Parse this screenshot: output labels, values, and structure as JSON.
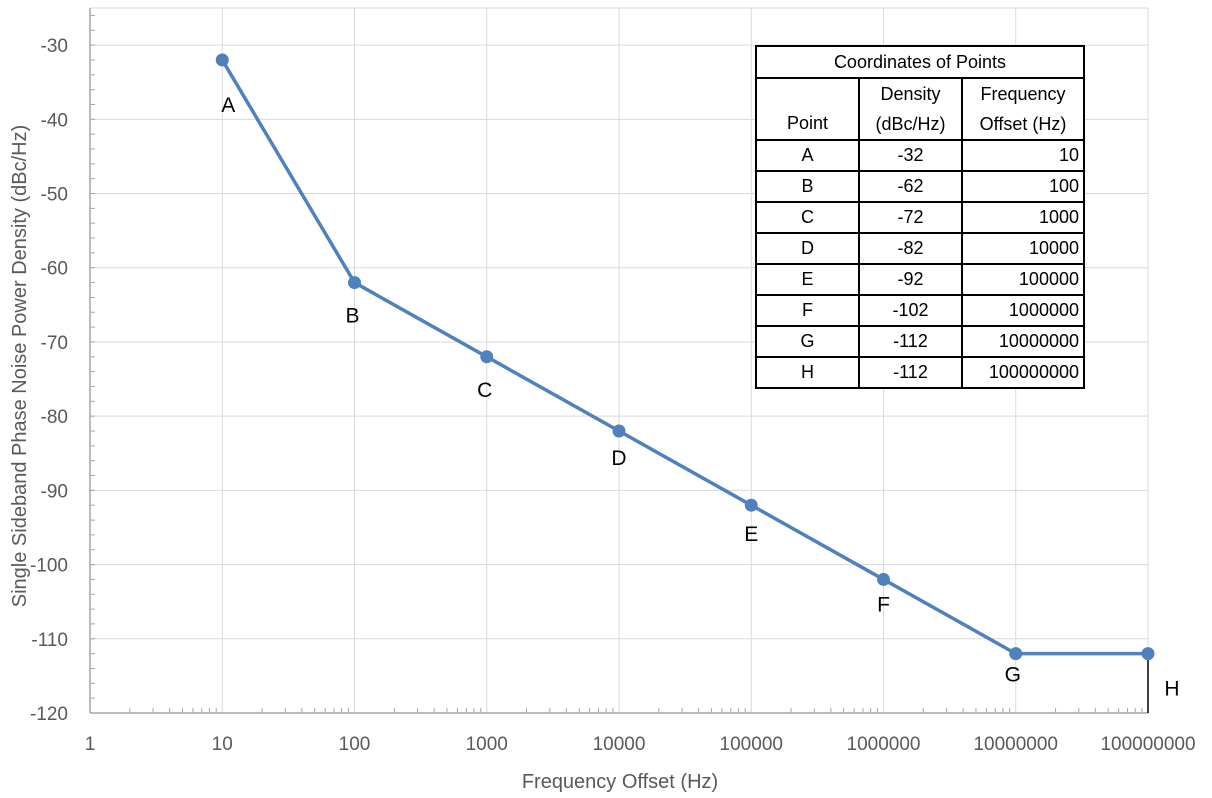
{
  "chart_data": {
    "type": "line",
    "x_scale": "log",
    "xlabel": "Frequency Offset (Hz)",
    "ylabel": "Single Sideband Phase Noise  Power Density (dBc/Hz)",
    "xlim": [
      1,
      100000000
    ],
    "ylim": [
      -120,
      -25
    ],
    "x_ticks": [
      "1",
      "10",
      "100",
      "1000",
      "10000",
      "100000",
      "1000000",
      "10000000",
      "100000000"
    ],
    "y_ticks": [
      "-30",
      "-40",
      "-50",
      "-60",
      "-70",
      "-80",
      "-90",
      "-100",
      "-110",
      "-120"
    ],
    "grid": true,
    "color": "#4f81bd",
    "points": [
      {
        "label": "A",
        "x": 10,
        "y": -32
      },
      {
        "label": "B",
        "x": 100,
        "y": -62
      },
      {
        "label": "C",
        "x": 1000,
        "y": -72
      },
      {
        "label": "D",
        "x": 10000,
        "y": -82
      },
      {
        "label": "E",
        "x": 100000,
        "y": -92
      },
      {
        "label": "F",
        "x": 1000000,
        "y": -102
      },
      {
        "label": "G",
        "x": 10000000,
        "y": -112
      },
      {
        "label": "H",
        "x": 100000000,
        "y": -112
      }
    ]
  },
  "table": {
    "title": "Coordinates of Points",
    "headers": {
      "point": "Point",
      "density_line1": "Density",
      "density_line2": "(dBc/Hz)",
      "freq_line1": "Frequency",
      "freq_line2": "Offset (Hz)"
    },
    "rows": [
      {
        "point": "A",
        "density": "-32",
        "freq": "10"
      },
      {
        "point": "B",
        "density": "-62",
        "freq": "100"
      },
      {
        "point": "C",
        "density": "-72",
        "freq": "1000"
      },
      {
        "point": "D",
        "density": "-82",
        "freq": "10000"
      },
      {
        "point": "E",
        "density": "-92",
        "freq": "100000"
      },
      {
        "point": "F",
        "density": "-102",
        "freq": "1000000"
      },
      {
        "point": "G",
        "density": "-112",
        "freq": "10000000"
      },
      {
        "point": "H",
        "density": "-112",
        "freq": "100000000"
      }
    ]
  }
}
